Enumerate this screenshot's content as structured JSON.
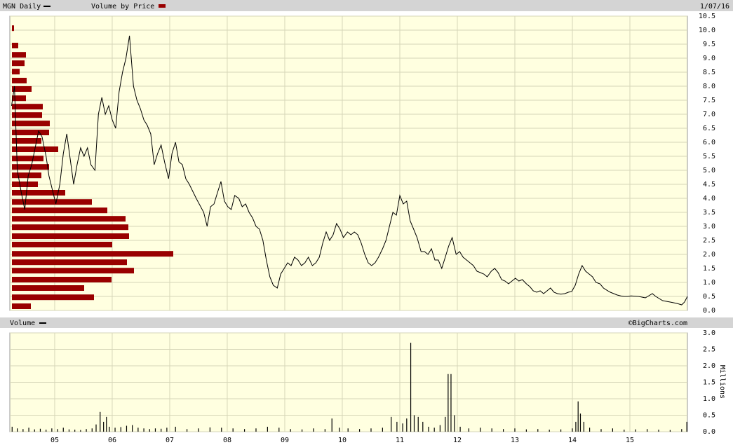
{
  "chart_data": [
    {
      "type": "line",
      "date": "1/07/16",
      "xlim": [
        2004.22,
        2016.0
      ],
      "ylim": [
        0,
        10.5
      ],
      "yticks": [
        {
          "value": 0,
          "label": "0.0"
        },
        0.5,
        {
          "value": 1,
          "label": "1.0"
        },
        1.5,
        {
          "value": 2,
          "label": "2.0"
        },
        2.5,
        {
          "value": 3,
          "label": "3.0"
        },
        3.5,
        {
          "value": 4,
          "label": "4.0"
        },
        4.5,
        {
          "value": 5,
          "label": "5.0"
        },
        5.5,
        {
          "value": 6,
          "label": "6.0"
        },
        6.5,
        {
          "value": 7,
          "label": "7.0"
        },
        7.5,
        {
          "value": 8,
          "label": "8.0"
        },
        8.5,
        {
          "value": 9,
          "label": "9.0"
        },
        9.5,
        {
          "value": 10,
          "label": "10.0"
        },
        10.5
      ],
      "grid": true,
      "series": [
        {
          "name": "MGN Daily",
          "color": "#000000",
          "x": [
            2004.25,
            2004.3,
            2004.35,
            2004.42,
            2004.48,
            2004.54,
            2004.6,
            2004.66,
            2004.72,
            2004.78,
            2004.85,
            2004.9,
            2004.96,
            2005.02,
            2005.09,
            2005.15,
            2005.21,
            2005.27,
            2005.33,
            2005.39,
            2005.45,
            2005.51,
            2005.57,
            2005.63,
            2005.7,
            2005.76,
            2005.82,
            2005.88,
            2005.94,
            2006.0,
            2006.06,
            2006.12,
            2006.18,
            2006.24,
            2006.3,
            2006.37,
            2006.43,
            2006.49,
            2006.55,
            2006.61,
            2006.67,
            2006.73,
            2006.79,
            2006.85,
            2006.91,
            2006.98,
            2007.04,
            2007.1,
            2007.16,
            2007.22,
            2007.28,
            2007.34,
            2007.46,
            2007.59,
            2007.65,
            2007.71,
            2007.77,
            2007.83,
            2007.89,
            2007.95,
            2008.01,
            2008.07,
            2008.13,
            2008.2,
            2008.26,
            2008.32,
            2008.38,
            2008.44,
            2008.5,
            2008.56,
            2008.62,
            2008.68,
            2008.74,
            2008.8,
            2008.87,
            2008.93,
            2008.99,
            2009.05,
            2009.11,
            2009.17,
            2009.23,
            2009.29,
            2009.35,
            2009.41,
            2009.48,
            2009.54,
            2009.6,
            2009.66,
            2009.72,
            2009.78,
            2009.84,
            2009.9,
            2009.96,
            2010.02,
            2010.09,
            2010.15,
            2010.21,
            2010.27,
            2010.33,
            2010.39,
            2010.45,
            2010.51,
            2010.57,
            2010.63,
            2010.7,
            2010.76,
            2010.82,
            2010.88,
            2010.94,
            2011.0,
            2011.06,
            2011.12,
            2011.18,
            2011.24,
            2011.3,
            2011.37,
            2011.43,
            2011.49,
            2011.55,
            2011.61,
            2011.67,
            2011.73,
            2011.79,
            2011.85,
            2011.91,
            2011.98,
            2012.04,
            2012.1,
            2012.16,
            2012.22,
            2012.28,
            2012.34,
            2012.4,
            2012.46,
            2012.52,
            2012.59,
            2012.65,
            2012.71,
            2012.77,
            2012.83,
            2012.89,
            2012.95,
            2013.01,
            2013.07,
            2013.13,
            2013.2,
            2013.26,
            2013.32,
            2013.38,
            2013.44,
            2013.5,
            2013.56,
            2013.62,
            2013.68,
            2013.74,
            2013.8,
            2013.87,
            2013.93,
            2013.99,
            2014.05,
            2014.11,
            2014.17,
            2014.23,
            2014.29,
            2014.35,
            2014.41,
            2014.48,
            2014.54,
            2014.6,
            2014.66,
            2014.72,
            2014.78,
            2014.84,
            2014.9,
            2014.96,
            2015.02,
            2015.15,
            2015.27,
            2015.39,
            2015.45,
            2015.57,
            2015.7,
            2015.82,
            2015.9,
            2015.95,
            2016.0
          ],
          "values": [
            7.3,
            8.0,
            5.0,
            4.2,
            3.6,
            4.8,
            5.2,
            5.8,
            6.4,
            6.2,
            5.5,
            4.8,
            4.3,
            3.8,
            4.5,
            5.6,
            6.3,
            5.4,
            4.5,
            5.2,
            5.8,
            5.5,
            5.8,
            5.2,
            5.0,
            7.0,
            7.6,
            7.0,
            7.3,
            6.8,
            6.5,
            7.8,
            8.5,
            9.0,
            9.8,
            8.0,
            7.5,
            7.2,
            6.8,
            6.6,
            6.3,
            5.2,
            5.6,
            5.9,
            5.3,
            4.7,
            5.6,
            6.0,
            5.3,
            5.2,
            4.7,
            4.5,
            4.0,
            3.5,
            3.0,
            3.7,
            3.8,
            4.2,
            4.6,
            3.9,
            3.7,
            3.6,
            4.1,
            4.0,
            3.7,
            3.8,
            3.5,
            3.3,
            3.0,
            2.9,
            2.5,
            1.8,
            1.2,
            0.9,
            0.8,
            1.3,
            1.5,
            1.7,
            1.6,
            1.9,
            1.8,
            1.6,
            1.7,
            1.9,
            1.6,
            1.7,
            1.9,
            2.4,
            2.8,
            2.5,
            2.7,
            3.1,
            2.9,
            2.6,
            2.8,
            2.7,
            2.8,
            2.7,
            2.4,
            2.0,
            1.7,
            1.6,
            1.7,
            1.9,
            2.2,
            2.5,
            3.0,
            3.5,
            3.4,
            4.1,
            3.8,
            3.9,
            3.2,
            2.9,
            2.6,
            2.1,
            2.1,
            2.0,
            2.2,
            1.8,
            1.8,
            1.5,
            1.9,
            2.3,
            2.6,
            2.0,
            2.1,
            1.9,
            1.8,
            1.7,
            1.6,
            1.4,
            1.35,
            1.3,
            1.2,
            1.4,
            1.5,
            1.35,
            1.1,
            1.05,
            0.95,
            1.05,
            1.15,
            1.05,
            1.1,
            0.95,
            0.85,
            0.7,
            0.65,
            0.7,
            0.6,
            0.7,
            0.8,
            0.65,
            0.6,
            0.58,
            0.6,
            0.65,
            0.68,
            0.9,
            1.3,
            1.6,
            1.4,
            1.3,
            1.2,
            1.0,
            0.95,
            0.8,
            0.72,
            0.65,
            0.6,
            0.55,
            0.52,
            0.5,
            0.5,
            0.52,
            0.5,
            0.45,
            0.6,
            0.5,
            0.35,
            0.3,
            0.25,
            0.2,
            0.3,
            0.5
          ]
        },
        {
          "name": "Volume by Price",
          "color": "#990000",
          "type": "hbar",
          "xlim": [
            0,
            966
          ],
          "y": [
            0.15,
            0.47,
            0.8,
            1.1,
            1.42,
            1.72,
            2.02,
            2.35,
            2.65,
            2.97,
            3.27,
            3.57,
            3.87,
            4.2,
            4.5,
            4.82,
            5.12,
            5.42,
            5.75,
            6.05,
            6.35,
            6.67,
            6.97,
            7.27,
            7.57,
            7.9,
            8.2,
            8.52,
            8.82,
            9.12,
            9.45,
            10.07
          ],
          "values": [
            27,
            117,
            103,
            142,
            174,
            164,
            230,
            143,
            167,
            166,
            162,
            136,
            114,
            76,
            37,
            42,
            53,
            45,
            66,
            42,
            53,
            54,
            43,
            44,
            20,
            28,
            21,
            11,
            18,
            20,
            9,
            3
          ]
        }
      ]
    },
    {
      "type": "bar",
      "source": "©BigCharts.com",
      "ylabel": "Millions",
      "xlim": [
        2004.22,
        2016.0
      ],
      "xticks": [
        {
          "value": 2005,
          "label": "05"
        },
        {
          "value": 2006,
          "label": "06"
        },
        {
          "value": 2007,
          "label": "07"
        },
        {
          "value": 2008,
          "label": "08"
        },
        {
          "value": 2009,
          "label": "09"
        },
        {
          "value": 2010,
          "label": "10"
        },
        {
          "value": 2011,
          "label": "11"
        },
        {
          "value": 2012,
          "label": "12"
        },
        {
          "value": 2013,
          "label": "13"
        },
        {
          "value": 2014,
          "label": "14"
        },
        {
          "value": 2015,
          "label": "15"
        }
      ],
      "ylim": [
        0,
        3
      ],
      "yticks": [
        {
          "value": 0,
          "label": "0.0"
        },
        0.5,
        {
          "value": 1,
          "label": "1.0"
        },
        1.5,
        {
          "value": 2,
          "label": "2.0"
        },
        2.5,
        {
          "value": 3,
          "label": "3.0"
        }
      ],
      "grid": true,
      "series": [
        {
          "name": "Volume",
          "color": "#000000",
          "x": [
            2004.26,
            2004.35,
            2004.45,
            2004.55,
            2004.65,
            2004.75,
            2004.85,
            2004.95,
            2005.05,
            2005.15,
            2005.25,
            2005.35,
            2005.45,
            2005.55,
            2005.65,
            2005.72,
            2005.79,
            2005.85,
            2005.9,
            2005.95,
            2006.05,
            2006.15,
            2006.25,
            2006.35,
            2006.45,
            2006.55,
            2006.65,
            2006.75,
            2006.85,
            2006.95,
            2007.1,
            2007.3,
            2007.5,
            2007.7,
            2007.9,
            2008.1,
            2008.3,
            2008.5,
            2008.7,
            2008.9,
            2009.1,
            2009.3,
            2009.5,
            2009.7,
            2009.82,
            2009.95,
            2010.1,
            2010.3,
            2010.5,
            2010.7,
            2010.85,
            2010.95,
            2011.05,
            2011.12,
            2011.19,
            2011.25,
            2011.32,
            2011.4,
            2011.5,
            2011.6,
            2011.7,
            2011.79,
            2011.84,
            2011.89,
            2011.95,
            2012.05,
            2012.2,
            2012.4,
            2012.6,
            2012.8,
            2013.0,
            2013.2,
            2013.4,
            2013.6,
            2013.8,
            2014.0,
            2014.06,
            2014.1,
            2014.14,
            2014.2,
            2014.3,
            2014.5,
            2014.7,
            2014.9,
            2015.1,
            2015.3,
            2015.5,
            2015.7,
            2015.9,
            2015.99
          ],
          "values": [
            0.15,
            0.1,
            0.08,
            0.12,
            0.07,
            0.09,
            0.06,
            0.1,
            0.08,
            0.12,
            0.07,
            0.06,
            0.05,
            0.08,
            0.1,
            0.22,
            0.6,
            0.3,
            0.45,
            0.15,
            0.12,
            0.14,
            0.18,
            0.2,
            0.12,
            0.1,
            0.08,
            0.1,
            0.09,
            0.12,
            0.15,
            0.08,
            0.1,
            0.13,
            0.12,
            0.1,
            0.08,
            0.1,
            0.15,
            0.12,
            0.08,
            0.07,
            0.1,
            0.08,
            0.4,
            0.12,
            0.1,
            0.08,
            0.1,
            0.12,
            0.45,
            0.3,
            0.25,
            0.4,
            2.7,
            0.5,
            0.45,
            0.3,
            0.15,
            0.12,
            0.2,
            0.45,
            1.75,
            1.75,
            0.5,
            0.15,
            0.1,
            0.12,
            0.1,
            0.08,
            0.1,
            0.07,
            0.08,
            0.06,
            0.07,
            0.1,
            0.3,
            0.92,
            0.55,
            0.3,
            0.12,
            0.08,
            0.1,
            0.06,
            0.07,
            0.08,
            0.06,
            0.05,
            0.08,
            0.3
          ]
        }
      ]
    }
  ]
}
